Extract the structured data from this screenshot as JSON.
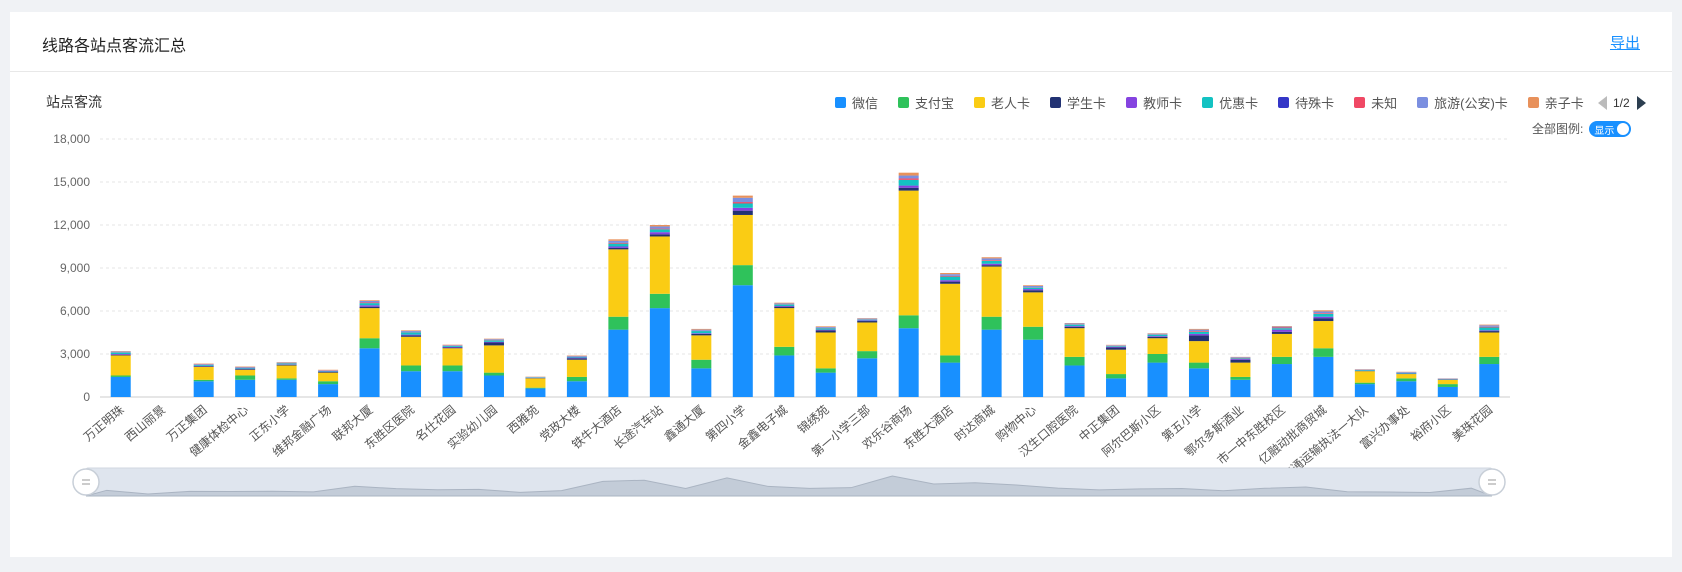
{
  "card": {
    "title": "线路各站点客流汇总",
    "export_label": "导出"
  },
  "chart_subtitle": "站点客流",
  "legend_pager": {
    "page": "1/2"
  },
  "legend_toggle": {
    "label": "全部图例:",
    "state": "显示"
  },
  "chart_data": {
    "type": "bar",
    "stacked": true,
    "title": "站点客流",
    "ylim": [
      0,
      18000
    ],
    "yticks": [
      "0",
      "3,000",
      "6,000",
      "9,000",
      "12,000",
      "15,000",
      "18,000"
    ],
    "grid": true,
    "legend_position": "top-right",
    "colors": [
      "#1890ff",
      "#2fc25b",
      "#facc14",
      "#223273",
      "#8543e0",
      "#13c2c2",
      "#3436c7",
      "#f04864",
      "#7b8fe0",
      "#e8915b"
    ],
    "categories": [
      "万正明珠",
      "西山丽景",
      "万正集团",
      "健康体检中心",
      "正东小学",
      "维邦金融广场",
      "联邦大厦",
      "东胜区医院",
      "名仕花园",
      "实验幼儿园",
      "西雅苑",
      "党政大楼",
      "铁牛大酒店",
      "长途汽车站",
      "鑫通大厦",
      "第四小学",
      "金鑫电子城",
      "锦绣苑",
      "第一小学三部",
      "欢乐谷商场",
      "东胜大酒店",
      "时达商城",
      "购物中心",
      "汉生口腔医院",
      "中正集团",
      "阿尔巴斯小区",
      "第五小学",
      "鄂尔多斯酒业",
      "市一中东胜校区",
      "亿融动批商贸城",
      "交通运输执法一大队",
      "富兴办事处",
      "裕府小区",
      "美珠花园"
    ],
    "series": [
      {
        "name": "微信",
        "values": [
          1400,
          0,
          1100,
          1200,
          1200,
          900,
          3400,
          1800,
          1800,
          1500,
          600,
          1100,
          4700,
          6200,
          2000,
          7800,
          2900,
          1700,
          2700,
          4800,
          2400,
          4700,
          4000,
          2200,
          1300,
          2400,
          2000,
          1200,
          2300,
          2800,
          900,
          1100,
          700,
          2300
        ]
      },
      {
        "name": "支付宝",
        "values": [
          100,
          0,
          100,
          300,
          100,
          200,
          700,
          400,
          400,
          200,
          50,
          300,
          900,
          1000,
          600,
          1400,
          600,
          300,
          500,
          900,
          500,
          900,
          900,
          600,
          300,
          600,
          400,
          200,
          500,
          600,
          100,
          200,
          200,
          500
        ]
      },
      {
        "name": "老人卡",
        "values": [
          1400,
          0,
          900,
          400,
          900,
          600,
          2100,
          2000,
          1200,
          1900,
          650,
          1200,
          4700,
          4000,
          1700,
          3500,
          2700,
          2500,
          2000,
          8700,
          5000,
          3500,
          2400,
          2000,
          1700,
          1100,
          1500,
          1000,
          1600,
          1900,
          800,
          300,
          300,
          1700
        ]
      },
      {
        "name": "学生卡",
        "values": [
          50,
          0,
          50,
          50,
          50,
          50,
          100,
          100,
          50,
          200,
          20,
          100,
          100,
          150,
          100,
          300,
          100,
          150,
          100,
          200,
          150,
          100,
          150,
          100,
          150,
          100,
          400,
          200,
          150,
          200,
          20,
          20,
          20,
          100
        ]
      },
      {
        "name": "教师卡",
        "values": [
          50,
          0,
          30,
          30,
          30,
          30,
          100,
          50,
          50,
          50,
          20,
          50,
          100,
          150,
          50,
          200,
          50,
          50,
          50,
          150,
          100,
          100,
          80,
          50,
          50,
          50,
          100,
          50,
          150,
          100,
          20,
          20,
          20,
          50
        ]
      },
      {
        "name": "优惠卡",
        "values": [
          100,
          0,
          60,
          60,
          60,
          40,
          150,
          150,
          60,
          100,
          30,
          60,
          200,
          200,
          150,
          300,
          100,
          100,
          50,
          400,
          250,
          200,
          100,
          100,
          50,
          100,
          150,
          50,
          100,
          200,
          50,
          50,
          20,
          200
        ]
      },
      {
        "name": "待殊卡",
        "values": [
          0,
          0,
          0,
          0,
          0,
          0,
          0,
          0,
          0,
          0,
          0,
          0,
          0,
          0,
          0,
          0,
          0,
          0,
          0,
          0,
          0,
          0,
          0,
          0,
          0,
          0,
          0,
          0,
          0,
          0,
          0,
          0,
          0,
          0
        ]
      },
      {
        "name": "未知",
        "values": [
          20,
          0,
          20,
          20,
          20,
          20,
          50,
          20,
          20,
          20,
          10,
          20,
          50,
          50,
          20,
          100,
          20,
          20,
          20,
          100,
          50,
          50,
          20,
          20,
          20,
          20,
          50,
          20,
          50,
          50,
          10,
          10,
          10,
          50
        ]
      },
      {
        "name": "旅游(公安)卡",
        "values": [
          50,
          0,
          40,
          40,
          40,
          30,
          100,
          80,
          40,
          60,
          20,
          40,
          150,
          150,
          80,
          300,
          60,
          60,
          50,
          200,
          120,
          120,
          100,
          60,
          40,
          50,
          100,
          50,
          60,
          120,
          20,
          40,
          20,
          100
        ]
      },
      {
        "name": "亲子卡",
        "values": [
          30,
          0,
          30,
          30,
          30,
          30,
          50,
          50,
          30,
          40,
          20,
          30,
          100,
          100,
          50,
          150,
          50,
          50,
          30,
          200,
          80,
          80,
          50,
          30,
          30,
          30,
          50,
          30,
          40,
          80,
          20,
          20,
          10,
          50
        ]
      }
    ]
  }
}
